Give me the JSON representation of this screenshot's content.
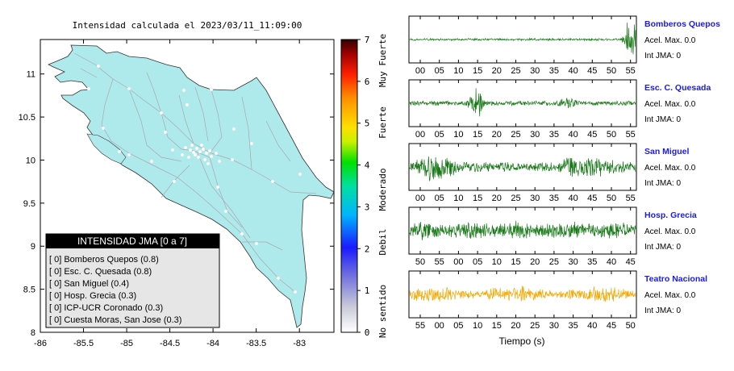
{
  "map": {
    "title": "Intensidad calculada el 2023/03/11_11:09:00",
    "x_ticks": [
      "-86",
      "-85.5",
      "-85",
      "-84.5",
      "-84",
      "-83.5",
      "-83"
    ],
    "x_tick_values": [
      -86,
      -85.5,
      -85,
      -84.5,
      -84,
      -83.5,
      -83
    ],
    "y_ticks": [
      "11",
      "10.5",
      "10",
      "9.5",
      "9",
      "8.5",
      "8"
    ],
    "y_tick_values": [
      11,
      10.5,
      10,
      9.5,
      9,
      8.5,
      8
    ],
    "xlim": [
      -86,
      -82.6
    ],
    "ylim": [
      8,
      11.4
    ],
    "land_color": "#aee9ec"
  },
  "colorbar": {
    "ticks": [
      "0",
      "1",
      "2",
      "3",
      "4",
      "5",
      "6",
      "7"
    ],
    "tick_values": [
      0,
      1,
      2,
      3,
      4,
      5,
      6,
      7
    ],
    "categories": [
      "No sentido",
      "Debil",
      "Moderado",
      "Fuerte",
      "Muy Fuerte"
    ]
  },
  "legend": {
    "title": "INTENSIDAD JMA [0 a 7]",
    "items": [
      "[ 0] Bomberos Quepos (0.8)",
      "[ 0] Esc. C. Quesada (0.8)",
      "[ 0] San Miguel (0.4)",
      "[ 0] Hosp. Grecia (0.3)",
      "[ 0] ICP-UCR Coronado (0.3)",
      "[ 0] Cuesta Moras, San Jose (0.3)"
    ]
  },
  "stations": [
    {
      "name": "Bomberos Quepos",
      "acel": "Acel. Max. 0.0",
      "jma": "Int JMA: 0",
      "ticks": [
        "00",
        "05",
        "10",
        "15",
        "20",
        "25",
        "30",
        "35",
        "40",
        "45",
        "50",
        "55"
      ],
      "color": "#1a7a1a"
    },
    {
      "name": "Esc. C. Quesada",
      "acel": "Acel. Max. 0.0",
      "jma": "Int JMA: 0",
      "ticks": [
        "00",
        "05",
        "10",
        "15",
        "20",
        "25",
        "30",
        "35",
        "40",
        "45",
        "50",
        "55"
      ],
      "color": "#1a7a1a"
    },
    {
      "name": "San Miguel",
      "acel": "Acel. Max. 0.0",
      "jma": "Int JMA: 0",
      "ticks": [
        "00",
        "05",
        "10",
        "15",
        "20",
        "25",
        "30",
        "35",
        "40",
        "45",
        "50",
        "55"
      ],
      "color": "#1a7a1a"
    },
    {
      "name": "Hosp. Grecia",
      "acel": "Acel. Max. 0.0",
      "jma": "Int JMA: 0",
      "ticks": [
        "50",
        "55",
        "00",
        "05",
        "10",
        "15",
        "20",
        "25",
        "30",
        "35",
        "40",
        "45"
      ],
      "color": "#1a7a1a"
    },
    {
      "name": "Teatro Nacional",
      "acel": "Acel. Max. 0.0",
      "jma": "Int JMA: 0",
      "ticks": [
        "55",
        "00",
        "05",
        "10",
        "15",
        "20",
        "25",
        "30",
        "35",
        "40",
        "45",
        "50"
      ],
      "color": "#f5a800"
    }
  ],
  "waveform_xlabel": "Tiempo (s)",
  "station_name_color": "#1a1aee",
  "chart_data": [
    {
      "type": "scatter",
      "title": "Intensidad calculada el 2023/03/11_11:09:00",
      "xlabel": "",
      "ylabel": "",
      "xlim": [
        -86,
        -82.6
      ],
      "ylim": [
        8,
        11.4
      ],
      "grid": false,
      "legend": "bottom-left",
      "series": [
        {
          "name": "INTENSIDAD JMA [0 a 7]",
          "labels": [
            "Bomberos Quepos",
            "Esc. C. Quesada",
            "San Miguel",
            "Hosp. Grecia",
            "ICP-UCR Coronado",
            "Cuesta Moras, San Jose"
          ],
          "values": [
            0.8,
            0.8,
            0.4,
            0.3,
            0.3,
            0.3
          ],
          "jma_class": [
            0,
            0,
            0,
            0,
            0,
            0
          ]
        }
      ]
    },
    {
      "type": "heatmap",
      "title": "",
      "ylim": [
        0,
        7
      ],
      "ticks": [
        0,
        1,
        2,
        3,
        4,
        5,
        6,
        7
      ],
      "categories": [
        "No sentido",
        "Debil",
        "Moderado",
        "Fuerte",
        "Muy Fuerte"
      ]
    },
    {
      "type": "line",
      "xlabel": "Tiempo (s)",
      "series": [
        {
          "name": "Bomberos Quepos",
          "peak_acceleration": 0.0,
          "jma_intensity": 0
        },
        {
          "name": "Esc. C. Quesada",
          "peak_acceleration": 0.0,
          "jma_intensity": 0
        },
        {
          "name": "San Miguel",
          "peak_acceleration": 0.0,
          "jma_intensity": 0
        },
        {
          "name": "Hosp. Grecia",
          "peak_acceleration": 0.0,
          "jma_intensity": 0
        },
        {
          "name": "Teatro Nacional",
          "peak_acceleration": 0.0,
          "jma_intensity": 0
        }
      ]
    }
  ]
}
